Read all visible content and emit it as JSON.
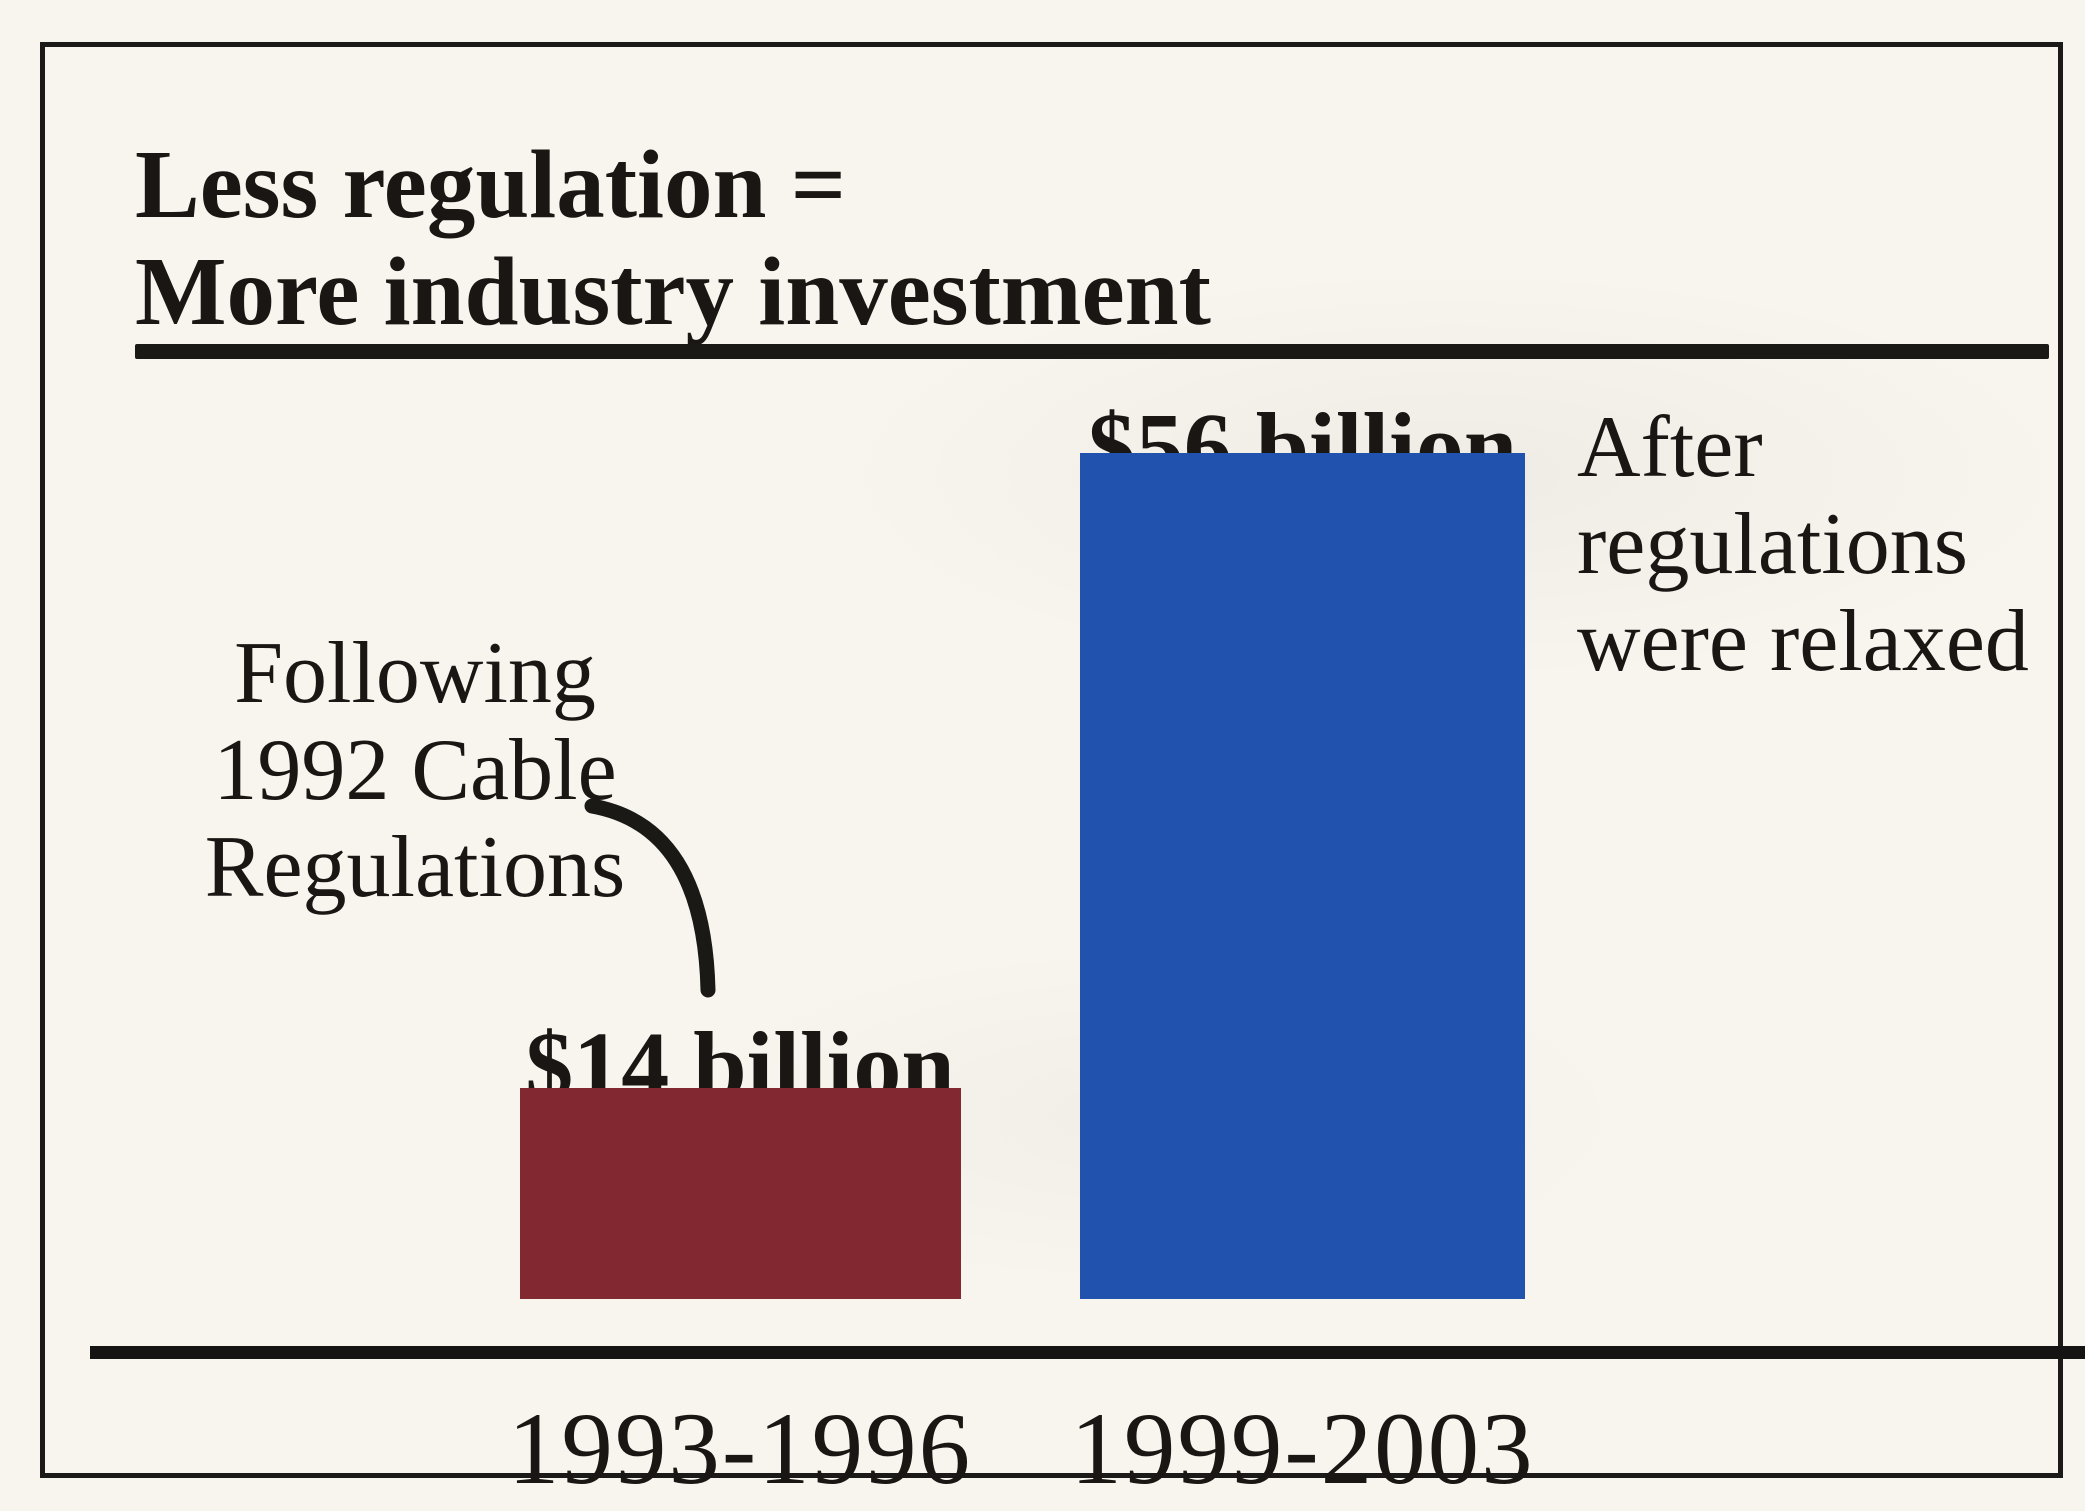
{
  "paper_color": "#f8f5ef",
  "ink_color": "#1b1916",
  "title": {
    "line1": "Less regulation =",
    "line2": "More industry investment"
  },
  "chart_data": {
    "type": "bar",
    "title": "Less regulation = More industry investment",
    "categories": [
      "1993-1996",
      "1999-2003"
    ],
    "values": [
      14,
      56
    ],
    "value_labels": [
      "$14 billion",
      "$56 billion"
    ],
    "unit": "billion dollars",
    "xlabel": "",
    "ylabel": "",
    "ylim": [
      0,
      60
    ],
    "grid": false,
    "legend": false,
    "bar_colors": [
      "#822831",
      "#2152ae"
    ],
    "annotations": [
      {
        "bar": "1993-1996",
        "text": "Following 1992 Cable Regulations",
        "position": "left of first bar, connected by curved line"
      },
      {
        "bar": "1999-2003",
        "text": "After regulations were relaxed",
        "position": "right of second bar value label"
      }
    ]
  },
  "bars": [
    {
      "category": "1993-1996",
      "value": 14,
      "value_label": "$14 billion",
      "color": "#822831"
    },
    {
      "category": "1999-2003",
      "value": 56,
      "value_label": "$56 billion",
      "color": "#2152ae"
    }
  ],
  "annotation_left": {
    "lines": [
      "Following",
      "1992 Cable",
      "Regulations"
    ]
  },
  "annotation_right": {
    "lines": [
      "After",
      "regulations",
      "were relaxed"
    ]
  }
}
